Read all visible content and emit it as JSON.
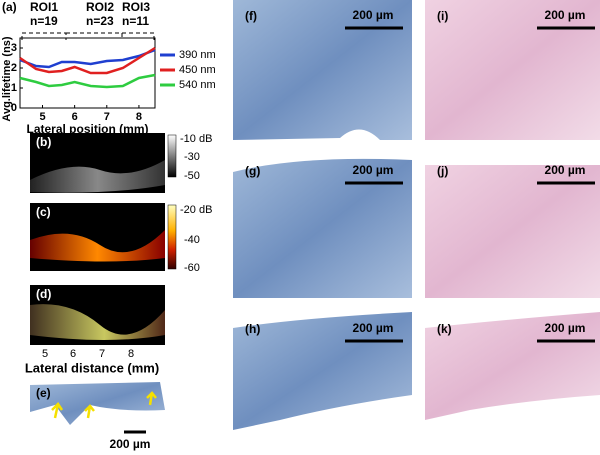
{
  "chart_data": {
    "type": "line",
    "panel_label": "(a)",
    "annotations": [
      "ROI1",
      "n=19",
      "ROI2",
      "n=23",
      "ROI3",
      "n=11"
    ],
    "x_label": "Lateral position (mm)",
    "y_label": "Avg.lifetime (ns)",
    "x": [
      4.3,
      4.8,
      5.2,
      5.6,
      6.0,
      6.5,
      7.0,
      7.5,
      8.0,
      8.5
    ],
    "series": [
      {
        "name": "390 nm",
        "color": "#1f3fd0",
        "values": [
          2.4,
          2.1,
          2.05,
          2.3,
          2.3,
          2.2,
          2.35,
          2.4,
          2.6,
          2.9
        ]
      },
      {
        "name": "450 nm",
        "color": "#e02020",
        "values": [
          2.5,
          1.95,
          1.8,
          1.85,
          2.05,
          1.75,
          1.75,
          2.0,
          2.5,
          3.0
        ]
      },
      {
        "name": "540 nm",
        "color": "#2ecc40",
        "values": [
          1.5,
          1.3,
          1.1,
          1.15,
          1.3,
          1.1,
          1.05,
          1.1,
          1.5,
          1.65
        ]
      }
    ],
    "xlim": [
      4.3,
      8.5
    ],
    "xticks": [
      5,
      6,
      7,
      8
    ],
    "ylim": [
      0,
      3.5
    ],
    "yticks": [
      0,
      1,
      2,
      3
    ]
  },
  "panels": {
    "b": {
      "label": "(b)",
      "colorbar": [
        "-10 dB",
        "-30",
        "-50"
      ]
    },
    "c": {
      "label": "(c)",
      "colorbar": [
        "-20 dB",
        "-40",
        "-60"
      ]
    },
    "d": {
      "label": "(d)",
      "xticks": [
        "5",
        "6",
        "7",
        "8"
      ],
      "x_label": "Lateral distance (mm)"
    },
    "e": {
      "label": "(e)",
      "scale_bar": "200 µm"
    },
    "f": {
      "label": "(f)",
      "scale_bar": "200 µm"
    },
    "g": {
      "label": "(g)",
      "scale_bar": "200 µm"
    },
    "h": {
      "label": "(h)",
      "scale_bar": "200 µm"
    },
    "i": {
      "label": "(i)",
      "scale_bar": "200 µm"
    },
    "j": {
      "label": "(j)",
      "scale_bar": "200 µm"
    },
    "k": {
      "label": "(k)",
      "scale_bar": "200 µm"
    }
  }
}
